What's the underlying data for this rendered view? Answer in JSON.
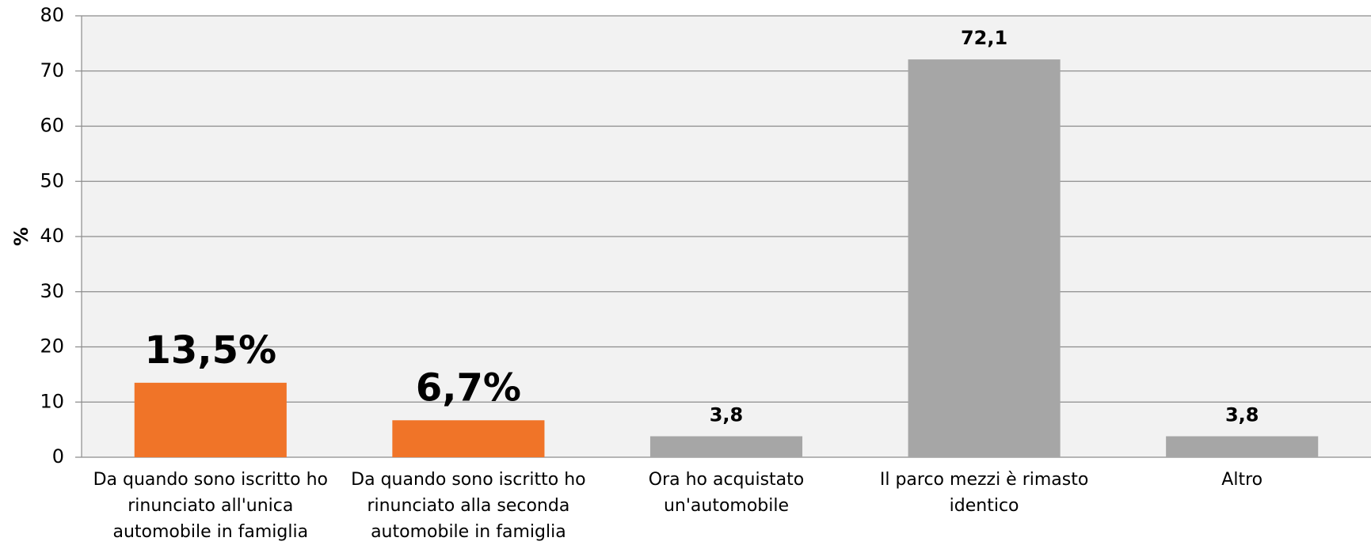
{
  "chart_data": {
    "type": "bar",
    "y_label": "%",
    "categories": [
      "Da quando sono iscritto ho rinunciato all'unica automobile in famiglia",
      "Da quando sono iscritto ho rinunciato alla seconda automobile in famiglia",
      "Ora ho acquistato un'automobile",
      "Il parco mezzi è rimasto identico",
      "Altro"
    ],
    "values": [
      13.5,
      6.7,
      3.8,
      72.1,
      3.8
    ],
    "value_labels": [
      "13,5%",
      "6,7%",
      "3,8",
      "72,1",
      "3,8"
    ],
    "colors": [
      "#f07428",
      "#f07428",
      "#a6a6a6",
      "#a6a6a6",
      "#a6a6a6"
    ],
    "ylim": [
      0,
      80
    ],
    "yticks": [
      0,
      10,
      20,
      30,
      40,
      50,
      60,
      70,
      80
    ],
    "grid": true
  }
}
